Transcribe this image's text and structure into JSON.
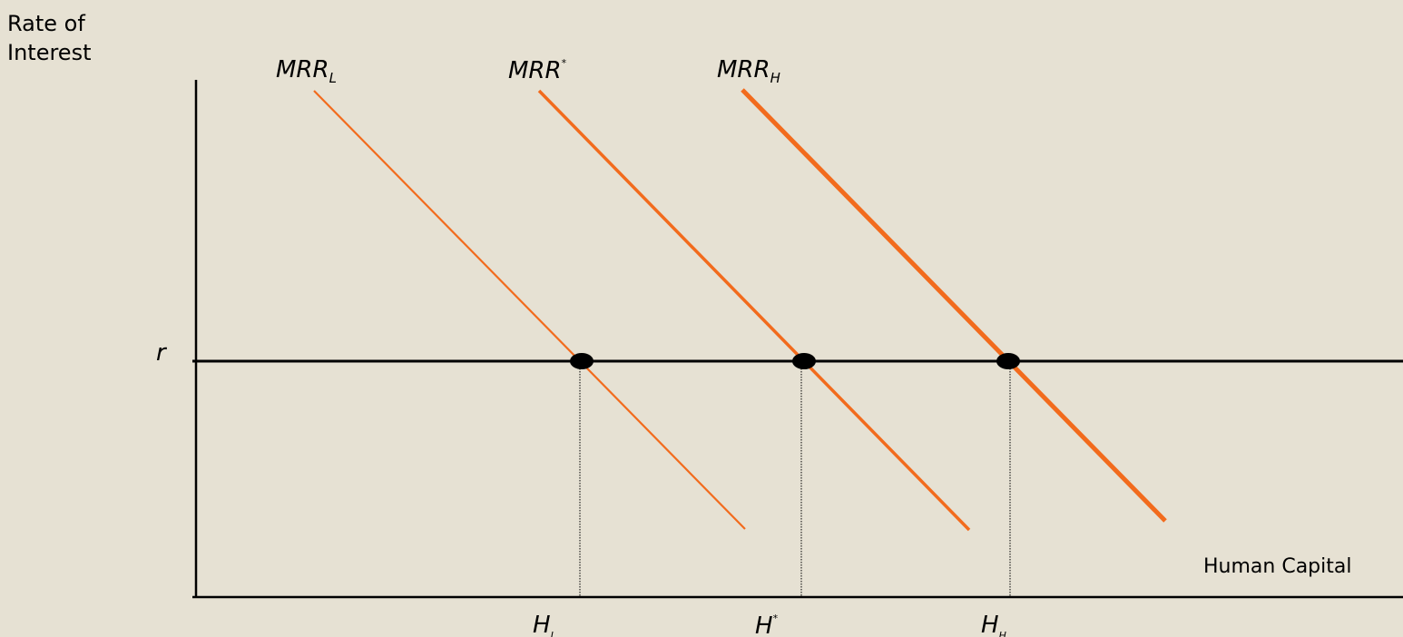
{
  "axes": {
    "y_label_line1": "Rate of",
    "y_label_line2": "Interest",
    "x_label": "Human Capital",
    "rate_label": "r"
  },
  "curves": [
    {
      "base": "MRR",
      "mark": "L",
      "mark_style": "subscript",
      "color": "#f26b1d"
    },
    {
      "base": "MRR",
      "mark": "*",
      "mark_style": "superscript",
      "color": "#f26b1d"
    },
    {
      "base": "MRR",
      "mark": "H",
      "mark_style": "subscript",
      "color": "#f26b1d"
    }
  ],
  "ticks": [
    {
      "base": "H",
      "mark": "L",
      "mark_style": "subscript"
    },
    {
      "base": "H",
      "mark": "*",
      "mark_style": "superscript"
    },
    {
      "base": "H",
      "mark": "H",
      "mark_style": "subscript"
    }
  ],
  "colors": {
    "background": "#e6e1d3",
    "curve": "#f26b1d",
    "axis": "#000000",
    "point": "#000000"
  }
}
